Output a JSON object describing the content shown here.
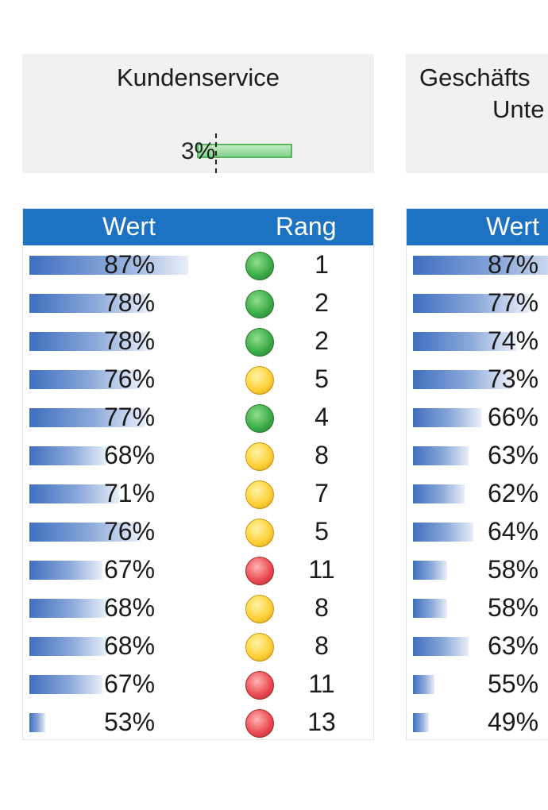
{
  "cards": [
    {
      "title": "Kundenservice",
      "value": "3%",
      "bar_fill": 1.0
    },
    {
      "title_lines": [
        "Geschäfts",
        "Unte"
      ]
    }
  ],
  "tables": [
    {
      "headers": {
        "wert": "Wert",
        "rang": "Rang"
      },
      "rows": [
        {
          "value": "87%",
          "fraction": 0.87,
          "status": "green",
          "rank": "1"
        },
        {
          "value": "78%",
          "fraction": 0.78,
          "status": "green",
          "rank": "2"
        },
        {
          "value": "78%",
          "fraction": 0.78,
          "status": "green",
          "rank": "2"
        },
        {
          "value": "76%",
          "fraction": 0.76,
          "status": "yellow",
          "rank": "5"
        },
        {
          "value": "77%",
          "fraction": 0.77,
          "status": "green",
          "rank": "4"
        },
        {
          "value": "68%",
          "fraction": 0.68,
          "status": "yellow",
          "rank": "8"
        },
        {
          "value": "71%",
          "fraction": 0.71,
          "status": "yellow",
          "rank": "7"
        },
        {
          "value": "76%",
          "fraction": 0.76,
          "status": "yellow",
          "rank": "5"
        },
        {
          "value": "67%",
          "fraction": 0.67,
          "status": "red",
          "rank": "11"
        },
        {
          "value": "68%",
          "fraction": 0.68,
          "status": "yellow",
          "rank": "8"
        },
        {
          "value": "68%",
          "fraction": 0.68,
          "status": "yellow",
          "rank": "8"
        },
        {
          "value": "67%",
          "fraction": 0.67,
          "status": "red",
          "rank": "11"
        },
        {
          "value": "53%",
          "fraction": 0.53,
          "status": "red",
          "rank": "13"
        }
      ]
    },
    {
      "headers": {
        "wert": "Wert"
      },
      "rows": [
        {
          "value": "87%",
          "fraction": 0.87
        },
        {
          "value": "77%",
          "fraction": 0.77
        },
        {
          "value": "74%",
          "fraction": 0.74
        },
        {
          "value": "73%",
          "fraction": 0.73
        },
        {
          "value": "66%",
          "fraction": 0.66
        },
        {
          "value": "63%",
          "fraction": 0.63
        },
        {
          "value": "62%",
          "fraction": 0.62
        },
        {
          "value": "64%",
          "fraction": 0.64
        },
        {
          "value": "58%",
          "fraction": 0.58
        },
        {
          "value": "58%",
          "fraction": 0.58
        },
        {
          "value": "63%",
          "fraction": 0.63
        },
        {
          "value": "55%",
          "fraction": 0.55
        },
        {
          "value": "49%",
          "fraction": 0.49
        }
      ]
    }
  ],
  "colors": {
    "header_blue": "#1d72c2",
    "status_green": "#3fae4a",
    "status_yellow": "#ffd23d",
    "status_red": "#ec4f55",
    "kpi_green": "#7fd38a"
  }
}
